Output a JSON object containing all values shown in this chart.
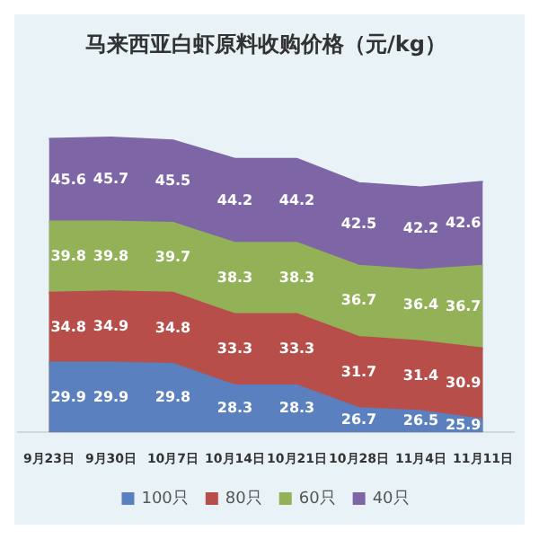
{
  "chart_data": {
    "type": "area",
    "title": "马来西亚白虾原料收购价格（元/kg）",
    "categories": [
      "9月23日",
      "9月30日",
      "10月7日",
      "10月14日",
      "10月21日",
      "10月28日",
      "11月4日",
      "11月11日"
    ],
    "series": [
      {
        "name": "100只",
        "color": "#5b80bf",
        "values": [
          29.9,
          29.9,
          29.8,
          28.3,
          28.3,
          26.7,
          26.5,
          25.9
        ]
      },
      {
        "name": "80只",
        "color": "#b84e4a",
        "values": [
          34.8,
          34.9,
          34.8,
          33.3,
          33.3,
          31.7,
          31.4,
          30.9
        ]
      },
      {
        "name": "60只",
        "color": "#93b257",
        "values": [
          39.8,
          39.8,
          39.7,
          38.3,
          38.3,
          36.7,
          36.4,
          36.7
        ]
      },
      {
        "name": "40只",
        "color": "#7e66a6",
        "values": [
          45.6,
          45.7,
          45.5,
          44.2,
          44.2,
          42.5,
          42.2,
          42.6
        ]
      }
    ],
    "data_labels": true,
    "legend": "bottom",
    "grid": false
  }
}
